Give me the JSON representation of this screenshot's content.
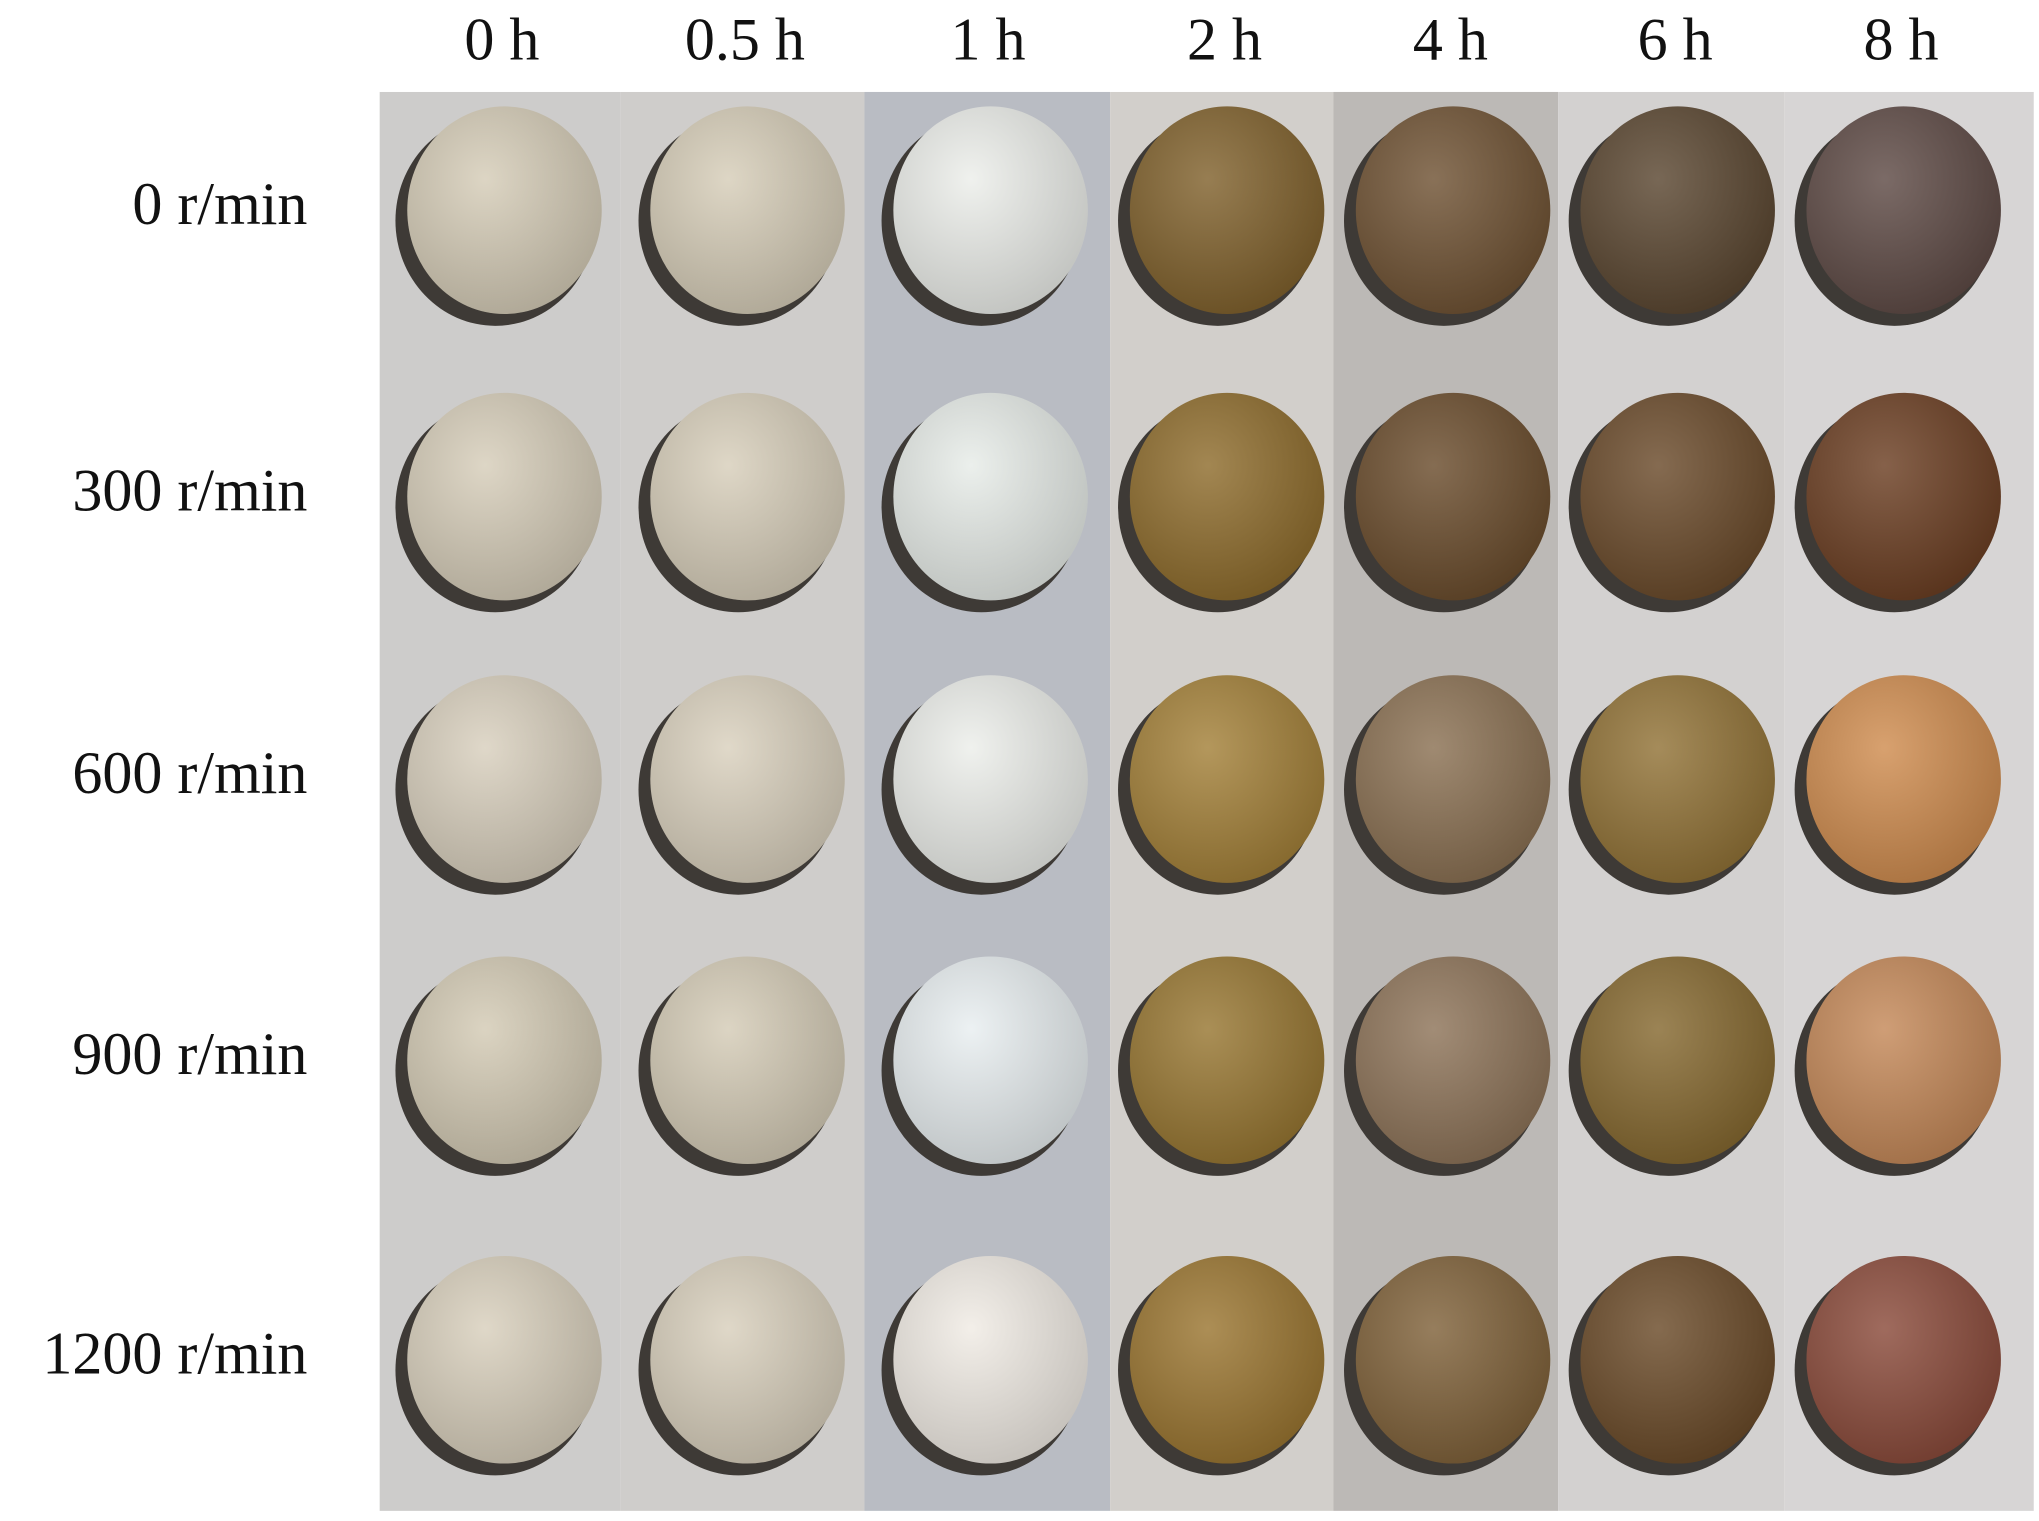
{
  "columns": [
    "0 h",
    "0.5 h",
    "1 h",
    "2 h",
    "4 h",
    "6 h",
    "8 h"
  ],
  "rows": [
    "0 r/min",
    "300 r/min",
    "600 r/min",
    "900 r/min",
    "1200 r/min"
  ]
}
